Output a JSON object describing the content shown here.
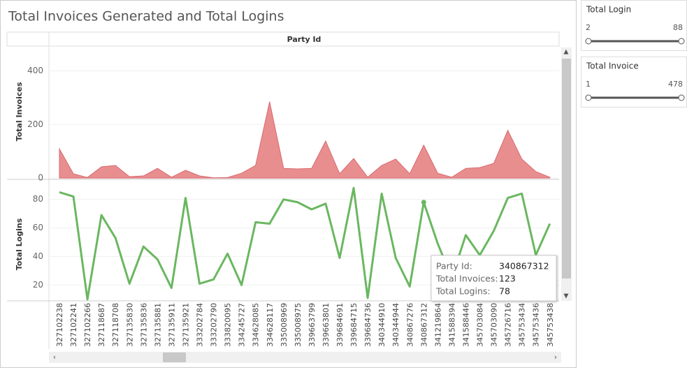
{
  "title": "Total Invoices Generated and Total Logins",
  "chart_data": [
    {
      "type": "area",
      "x_label": "Party Id",
      "y_label": "Total Invoices",
      "color": "#e98e8f",
      "line_color": "#d86a70",
      "categories": [
        "327102238",
        "327102241",
        "327102266",
        "327118687",
        "327118708",
        "327135830",
        "327135836",
        "327135881",
        "327135911",
        "327135921",
        "333202784",
        "333202790",
        "333820095",
        "334245727",
        "334628085",
        "334628117",
        "335008969",
        "335008975",
        "339663799",
        "339663801",
        "339684691",
        "339684715",
        "339684736",
        "340344910",
        "340344944",
        "340867276",
        "340867312",
        "341219864",
        "341588394",
        "341588446",
        "345703084",
        "345703090",
        "345726716",
        "345753434",
        "345753436",
        "345753438"
      ],
      "values": [
        109,
        16,
        2,
        42,
        47,
        5,
        8,
        36,
        3,
        29,
        8,
        1,
        2,
        18,
        47,
        285,
        36,
        34,
        36,
        138,
        16,
        73,
        3,
        47,
        71,
        16,
        123,
        18,
        3,
        36,
        39,
        55,
        178,
        71,
        24,
        3
      ],
      "ylim": [
        -5,
        490
      ],
      "yticks": [
        0,
        200,
        400
      ]
    },
    {
      "type": "line",
      "y_label": "Total Logins",
      "color": "#6ab760",
      "values": [
        85,
        82,
        10,
        69,
        53,
        21,
        47,
        38,
        18,
        81,
        21,
        24,
        42,
        20,
        64,
        63,
        80,
        78,
        73,
        77,
        39,
        88,
        11,
        84,
        39,
        19,
        78,
        49,
        25,
        55,
        41,
        58,
        81,
        84,
        41,
        63
      ],
      "ylim": [
        9,
        94
      ],
      "yticks": [
        20,
        40,
        60,
        80
      ],
      "highlight": 26
    }
  ],
  "filters": [
    {
      "label": "Total Login",
      "min": 2,
      "max": 88
    },
    {
      "label": "Total Invoice",
      "min": 1,
      "max": 478
    }
  ],
  "tooltip": {
    "rows": [
      [
        "Party Id:",
        "340867312"
      ],
      [
        "Total Invoices:",
        "123"
      ],
      [
        "Total Logins:",
        "78"
      ]
    ]
  }
}
